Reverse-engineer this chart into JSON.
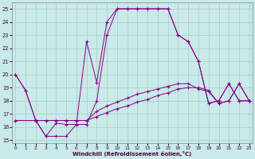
{
  "xlabel": "Windchill (Refroidissement éolien,°C)",
  "xlim": [
    -0.3,
    23.3
  ],
  "ylim": [
    14.8,
    25.5
  ],
  "xticks": [
    0,
    1,
    2,
    3,
    4,
    5,
    6,
    7,
    8,
    9,
    10,
    11,
    12,
    13,
    14,
    15,
    16,
    17,
    18,
    19,
    20,
    21,
    22,
    23
  ],
  "yticks": [
    15,
    16,
    17,
    18,
    19,
    20,
    21,
    22,
    23,
    24,
    25
  ],
  "bg_color": "#c8eae8",
  "line_color": "#880088",
  "grid_color": "#a8ccc8",
  "lines": [
    {
      "x": [
        0,
        1,
        2,
        3,
        4,
        5,
        6,
        7,
        8,
        9,
        10,
        11,
        12,
        13,
        14,
        15,
        16,
        17,
        18,
        19,
        20,
        21,
        22,
        23
      ],
      "y": [
        20,
        18.8,
        16.5,
        15.3,
        15.3,
        15.3,
        16.2,
        22.5,
        19.4,
        24.0,
        25.0,
        25.0,
        25.0,
        25.0,
        25.0,
        25.0,
        23.0,
        22.5,
        21.0,
        17.8,
        18.0,
        19.3,
        18.0,
        18.0
      ]
    },
    {
      "x": [
        0,
        1,
        2,
        3,
        4,
        5,
        6,
        7,
        8,
        9,
        10,
        11,
        12,
        13,
        14,
        15,
        16,
        17,
        18,
        19,
        20,
        21,
        22,
        23
      ],
      "y": [
        20,
        18.8,
        16.5,
        15.3,
        16.3,
        16.2,
        16.2,
        16.2,
        18.0,
        23.0,
        25.0,
        25.0,
        25.0,
        25.0,
        25.0,
        25.0,
        23.0,
        22.5,
        21.0,
        17.8,
        18.0,
        19.3,
        18.0,
        18.0
      ]
    },
    {
      "x": [
        0,
        2,
        3,
        4,
        5,
        6,
        7,
        8,
        9,
        10,
        11,
        12,
        13,
        14,
        15,
        16,
        17,
        18,
        19,
        20,
        21,
        22,
        23
      ],
      "y": [
        16.5,
        16.5,
        16.5,
        16.5,
        16.5,
        16.5,
        16.5,
        16.8,
        17.1,
        17.4,
        17.6,
        17.9,
        18.1,
        18.4,
        18.6,
        18.9,
        19.0,
        19.0,
        18.8,
        17.8,
        18.0,
        19.3,
        18.0
      ]
    },
    {
      "x": [
        0,
        2,
        3,
        4,
        5,
        6,
        7,
        8,
        9,
        10,
        11,
        12,
        13,
        14,
        15,
        16,
        17,
        18,
        19,
        20,
        21,
        22,
        23
      ],
      "y": [
        16.5,
        16.5,
        16.5,
        16.5,
        16.5,
        16.5,
        16.5,
        17.2,
        17.6,
        17.9,
        18.2,
        18.5,
        18.7,
        18.9,
        19.1,
        19.3,
        19.3,
        18.9,
        18.7,
        17.8,
        18.0,
        19.3,
        18.0
      ]
    }
  ]
}
